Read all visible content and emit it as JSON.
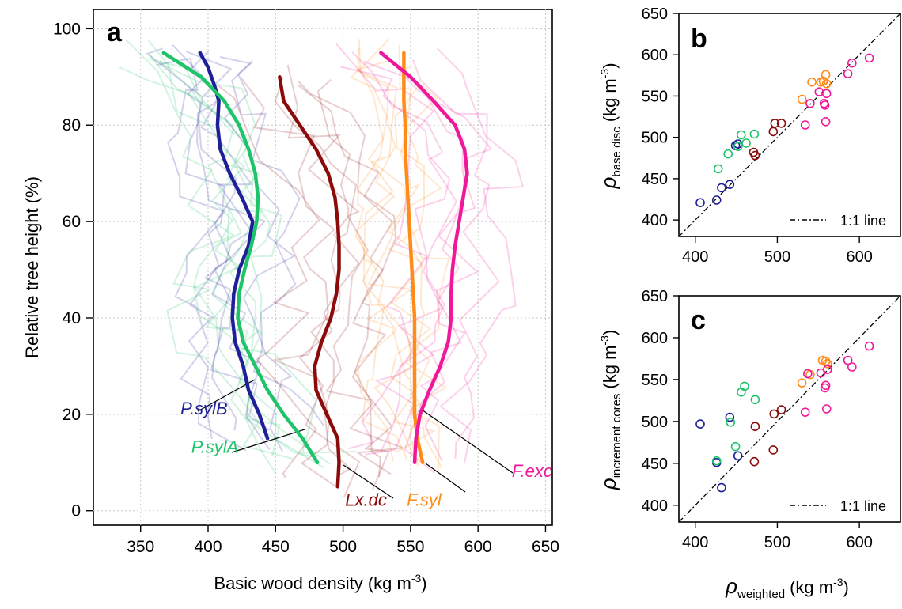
{
  "panel_a": {
    "letter": "a",
    "xlabel": "Basic wood density (kg m",
    "xlabel_sup": "-3",
    "xlabel_end": ")",
    "ylabel": "Relative tree height (%)"
  },
  "panel_b": {
    "letter": "b",
    "ylabel_rho": "ρ",
    "ylabel_sub": "base disc",
    "ylabel_unit": "(kg m",
    "ylabel_sup": "-3",
    "ylabel_end": ")",
    "legend": "1:1 line"
  },
  "panel_c": {
    "letter": "c",
    "ylabel_rho": "ρ",
    "ylabel_sub": "increment cores",
    "ylabel_unit": "(kg m",
    "ylabel_sup": "-3",
    "ylabel_end": ")",
    "legend": "1:1 line",
    "xlabel_rho": "ρ",
    "xlabel_sub": "weighted",
    "xlabel_unit": "(kg m",
    "xlabel_sup": "-3",
    "xlabel_end": ")"
  },
  "colors": {
    "P.sylB": "#1f1f99",
    "P.sylA": "#1fc46a",
    "Lx.dc": "#8b0a0a",
    "F.syl": "#ff8c1a",
    "F.exc": "#f0189a"
  },
  "chart_data": [
    {
      "panel": "a",
      "type": "line",
      "xlabel": "Basic wood density (kg m-3)",
      "ylabel": "Relative tree height (%)",
      "xlim": [
        315,
        655
      ],
      "ylim": [
        -3,
        104
      ],
      "xticks": [
        350,
        400,
        450,
        500,
        550,
        600,
        650
      ],
      "yticks": [
        0,
        20,
        40,
        60,
        80,
        100
      ],
      "grid": true,
      "series": [
        {
          "name": "P.sylB",
          "color_key": "P.sylB",
          "x": [
            444,
            438,
            430,
            426,
            420,
            418,
            419,
            423,
            430,
            433,
            425,
            416,
            409,
            407,
            408,
            405,
            400,
            394
          ],
          "y": [
            15,
            20,
            25,
            30,
            35,
            40,
            45,
            50,
            55,
            60,
            65,
            70,
            75,
            80,
            85,
            88,
            92,
            95
          ],
          "label_xy": [
            397,
            20
          ]
        },
        {
          "name": "P.sylA",
          "color_key": "P.sylA",
          "x": [
            481,
            470,
            456,
            444,
            435,
            426,
            422,
            423,
            427,
            432,
            436,
            437,
            435,
            430,
            423,
            412,
            395,
            367
          ],
          "y": [
            10,
            15,
            20,
            25,
            30,
            35,
            40,
            45,
            50,
            55,
            60,
            65,
            70,
            75,
            80,
            85,
            90,
            95
          ],
          "label_xy": [
            405,
            12
          ]
        },
        {
          "name": "Lx.dc",
          "color_key": "Lx.dc",
          "x": [
            496,
            497,
            496,
            488,
            480,
            479,
            484,
            491,
            495,
            497,
            497,
            496,
            494,
            489,
            480,
            468,
            456,
            453
          ],
          "y": [
            5,
            10,
            15,
            20,
            25,
            30,
            35,
            40,
            45,
            50,
            55,
            60,
            65,
            70,
            75,
            80,
            85,
            90
          ],
          "label_xy": [
            517,
            1
          ]
        },
        {
          "name": "F.syl",
          "color_key": "F.syl",
          "x": [
            559,
            555,
            553,
            553,
            553,
            553,
            553,
            552,
            551,
            550,
            549,
            548,
            547,
            546,
            546,
            545,
            545,
            545
          ],
          "y": [
            10,
            15,
            20,
            25,
            30,
            35,
            40,
            45,
            50,
            55,
            60,
            65,
            70,
            75,
            80,
            85,
            90,
            95
          ],
          "label_xy": [
            560,
            1
          ]
        },
        {
          "name": "F.exc",
          "color_key": "F.exc",
          "x": [
            553,
            554,
            557,
            564,
            572,
            578,
            580,
            580,
            581,
            583,
            586,
            589,
            592,
            590,
            583,
            567,
            550,
            528
          ],
          "y": [
            10,
            15,
            20,
            25,
            30,
            35,
            40,
            45,
            50,
            55,
            60,
            65,
            70,
            75,
            80,
            85,
            90,
            95
          ],
          "label_xy": [
            640,
            7
          ]
        }
      ]
    },
    {
      "panel": "b",
      "type": "scatter",
      "xlabel": "ρweighted (kg m-3)",
      "ylabel": "ρbase disc (kg m-3)",
      "xlim": [
        380,
        650
      ],
      "ylim": [
        380,
        650
      ],
      "xticks": [
        400,
        500,
        600
      ],
      "yticks": [
        400,
        450,
        500,
        550,
        600,
        650
      ],
      "reference_line": "1:1",
      "legend_position": "bottom-right",
      "groups": [
        {
          "name": "P.sylB",
          "color_key": "P.sylB",
          "x": [
            406,
            426,
            432,
            442,
            449,
            452
          ],
          "y": [
            421,
            424,
            439,
            443,
            490,
            492
          ]
        },
        {
          "name": "P.sylA",
          "color_key": "P.sylA",
          "x": [
            428,
            440,
            452,
            456,
            462,
            472
          ],
          "y": [
            462,
            480,
            489,
            503,
            493,
            504
          ]
        },
        {
          "name": "Lx.dc",
          "color_key": "Lx.dc",
          "x": [
            471,
            473,
            495,
            497,
            505
          ],
          "y": [
            482,
            478,
            507,
            517,
            517
          ]
        },
        {
          "name": "F.syl",
          "color_key": "F.syl",
          "x": [
            530,
            542,
            553,
            556,
            559,
            560
          ],
          "y": [
            546,
            567,
            567,
            568,
            576,
            565
          ]
        },
        {
          "name": "F.exc",
          "color_key": "F.exc",
          "x": [
            534,
            540,
            551,
            557,
            558,
            559,
            560,
            586,
            591,
            612
          ],
          "y": [
            515,
            541,
            555,
            541,
            539,
            519,
            553,
            577,
            590,
            596
          ]
        }
      ]
    },
    {
      "panel": "c",
      "type": "scatter",
      "xlabel": "ρweighted (kg m-3)",
      "ylabel": "ρincrement cores (kg m-3)",
      "xlim": [
        380,
        650
      ],
      "ylim": [
        380,
        650
      ],
      "xticks": [
        400,
        500,
        600
      ],
      "yticks": [
        400,
        450,
        500,
        550,
        600,
        650
      ],
      "reference_line": "1:1",
      "legend_position": "bottom-right",
      "groups": [
        {
          "name": "P.sylB",
          "color_key": "P.sylB",
          "x": [
            406,
            426,
            432,
            442,
            452
          ],
          "y": [
            497,
            451,
            421,
            505,
            459
          ]
        },
        {
          "name": "P.sylA",
          "color_key": "P.sylA",
          "x": [
            426,
            443,
            449,
            456,
            460,
            473
          ],
          "y": [
            453,
            499,
            470,
            535,
            542,
            526
          ]
        },
        {
          "name": "Lx.dc",
          "color_key": "Lx.dc",
          "x": [
            472,
            473,
            495,
            496,
            505
          ],
          "y": [
            452,
            494,
            466,
            509,
            514
          ]
        },
        {
          "name": "F.syl",
          "color_key": "F.syl",
          "x": [
            530,
            540,
            555,
            559,
            561
          ],
          "y": [
            546,
            556,
            573,
            572,
            569
          ]
        },
        {
          "name": "F.exc",
          "color_key": "F.exc",
          "x": [
            534,
            537,
            553,
            558,
            559,
            560,
            561,
            586,
            591,
            612
          ],
          "y": [
            511,
            557,
            558,
            540,
            543,
            515,
            562,
            573,
            565,
            590
          ]
        }
      ]
    }
  ]
}
